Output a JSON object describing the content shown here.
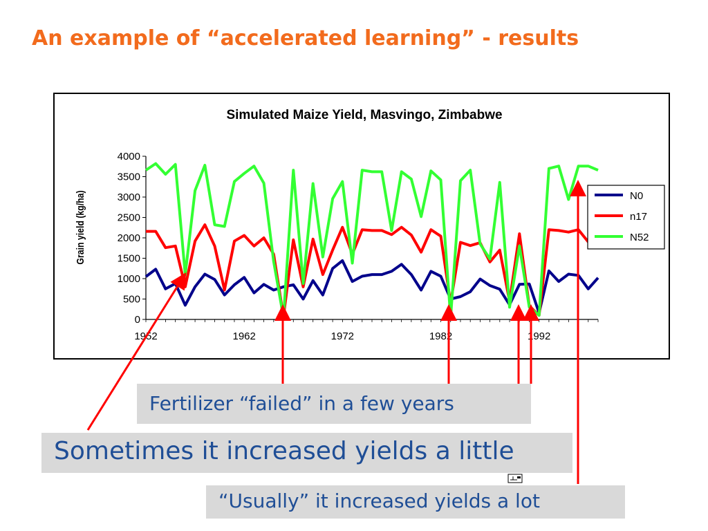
{
  "slide": {
    "title": "An example of “accelerated learning” -  results"
  },
  "chart_data": {
    "type": "line",
    "title": "Simulated Maize Yield, Masvingo, Zimbabwe",
    "xlabel": "",
    "ylabel": "Grain yield (kg/ha)",
    "xlim": [
      1952,
      1998
    ],
    "ylim": [
      0,
      4000
    ],
    "yticks": [
      0,
      500,
      1000,
      1500,
      2000,
      2500,
      3000,
      3500,
      4000
    ],
    "xticks": [
      1952,
      1962,
      1972,
      1982,
      1992
    ],
    "grid": false,
    "legend": "right",
    "x": [
      1952,
      1953,
      1954,
      1955,
      1956,
      1957,
      1958,
      1959,
      1960,
      1961,
      1962,
      1963,
      1964,
      1965,
      1966,
      1967,
      1968,
      1969,
      1970,
      1971,
      1972,
      1973,
      1974,
      1975,
      1976,
      1977,
      1978,
      1979,
      1980,
      1981,
      1982,
      1983,
      1984,
      1985,
      1986,
      1987,
      1988,
      1989,
      1990,
      1991,
      1992,
      1993,
      1994,
      1995,
      1996,
      1997,
      1998
    ],
    "series": [
      {
        "name": "N0",
        "color": "#00008b",
        "values": [
          1050,
          1230,
          750,
          880,
          350,
          800,
          1110,
          980,
          600,
          850,
          1030,
          650,
          860,
          720,
          800,
          850,
          500,
          950,
          600,
          1250,
          1440,
          930,
          1060,
          1100,
          1100,
          1180,
          1350,
          1100,
          720,
          1180,
          1060,
          500,
          560,
          680,
          990,
          830,
          740,
          360,
          860,
          870,
          160,
          1190,
          930,
          1110,
          1080,
          750,
          1020
        ]
      },
      {
        "name": "n17",
        "color": "#ff0000",
        "values": [
          2160,
          2160,
          1760,
          1800,
          800,
          1920,
          2320,
          1800,
          720,
          1920,
          2060,
          1800,
          2000,
          1600,
          70,
          1950,
          800,
          1970,
          1100,
          1700,
          2260,
          1600,
          2200,
          2180,
          2180,
          2080,
          2260,
          2070,
          1650,
          2200,
          2040,
          400,
          1890,
          1810,
          1880,
          1410,
          1700,
          440,
          2100,
          330,
          100,
          2200,
          2180,
          2140,
          2200,
          1900,
          2000
        ]
      },
      {
        "name": "N52",
        "color": "#33ff33",
        "values": [
          3660,
          3820,
          3560,
          3800,
          1100,
          3160,
          3780,
          2320,
          2280,
          3380,
          3580,
          3760,
          3340,
          1420,
          50,
          3660,
          880,
          3330,
          1530,
          2960,
          3380,
          1380,
          3660,
          3620,
          3620,
          2180,
          3620,
          3440,
          2520,
          3640,
          3420,
          40,
          3400,
          3660,
          1850,
          1480,
          3360,
          300,
          1800,
          300,
          100,
          3700,
          3760,
          2940,
          3760,
          3760,
          3660
        ]
      }
    ]
  },
  "callouts": {
    "failed": "Fertilizer “failed” in a few years",
    "little": "Sometimes it increased yields a little",
    "lot": "“Usually” it increased yields a lot"
  },
  "colors": {
    "title": "#f26b1d",
    "callout_text": "#1f4e96",
    "callout_bg": "#d9d9d9",
    "arrow": "#ff0000"
  },
  "icons": {
    "pin": "pin-icon"
  }
}
